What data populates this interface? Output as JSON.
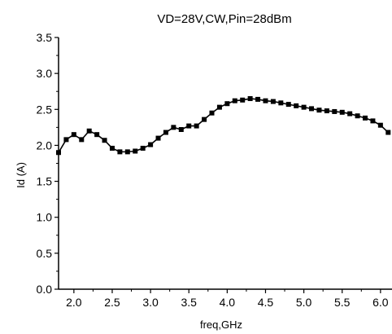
{
  "chart_data": {
    "type": "line",
    "title": "VD=28V,CW,Pin=28dBm",
    "xlabel": "freq,GHz",
    "ylabel": "Id (A)",
    "xlim": [
      1.8,
      6.15
    ],
    "ylim": [
      0.0,
      3.5
    ],
    "xticks": [
      "2.0",
      "2.5",
      "3.0",
      "3.5",
      "4.0",
      "4.5",
      "5.0",
      "5.5",
      "6.0"
    ],
    "yticks": [
      "0.0",
      "0.5",
      "1.0",
      "1.5",
      "2.0",
      "2.5",
      "3.0",
      "3.5"
    ],
    "grid": false,
    "marker": "square",
    "line_color": "#000000",
    "series": [
      {
        "x": [
          1.8,
          1.9,
          2.0,
          2.1,
          2.2,
          2.3,
          2.4,
          2.5,
          2.6,
          2.7,
          2.8,
          2.9,
          3.0,
          3.1,
          3.2,
          3.3,
          3.4,
          3.5,
          3.6,
          3.7,
          3.8,
          3.9,
          4.0,
          4.1,
          4.2,
          4.3,
          4.4,
          4.5,
          4.6,
          4.7,
          4.8,
          4.9,
          5.0,
          5.1,
          5.2,
          5.3,
          5.4,
          5.5,
          5.6,
          5.7,
          5.8,
          5.9,
          6.0,
          6.1
        ],
        "y": [
          1.9,
          2.08,
          2.15,
          2.08,
          2.2,
          2.15,
          2.07,
          1.96,
          1.91,
          1.91,
          1.92,
          1.96,
          2.01,
          2.1,
          2.18,
          2.25,
          2.22,
          2.27,
          2.27,
          2.36,
          2.45,
          2.53,
          2.58,
          2.62,
          2.63,
          2.65,
          2.64,
          2.62,
          2.61,
          2.59,
          2.57,
          2.55,
          2.53,
          2.51,
          2.49,
          2.48,
          2.47,
          2.46,
          2.44,
          2.41,
          2.38,
          2.34,
          2.28,
          2.18
        ]
      }
    ]
  }
}
